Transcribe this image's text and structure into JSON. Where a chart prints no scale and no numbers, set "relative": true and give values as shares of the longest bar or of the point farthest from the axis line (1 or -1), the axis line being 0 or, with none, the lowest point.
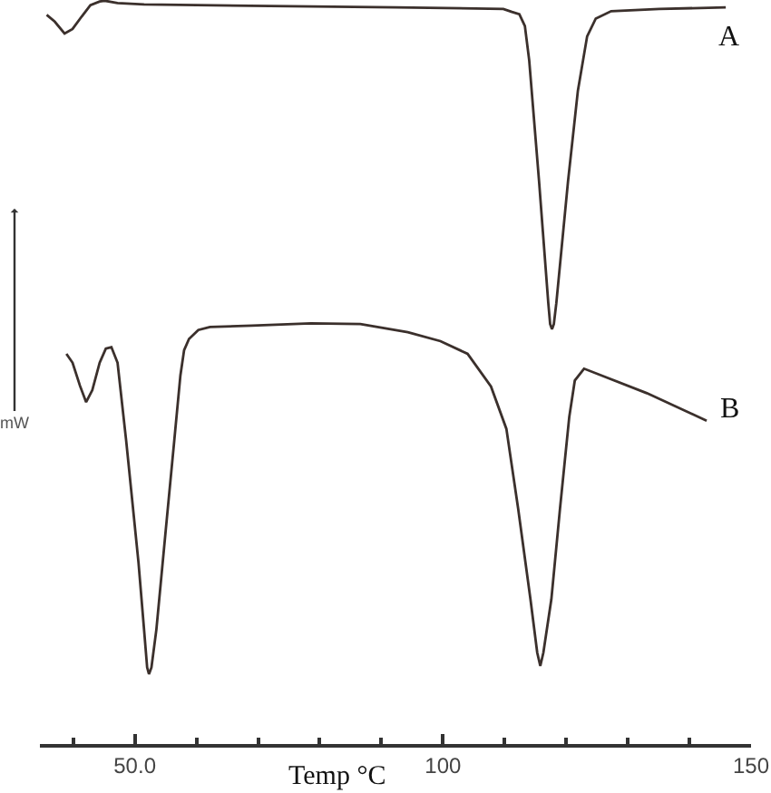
{
  "chart_data": {
    "type": "line",
    "relative": true,
    "xlabel": "Temp °C",
    "ylabel": "mW",
    "legend": false,
    "tick_labels": "x",
    "xlim": [
      34.6,
      150
    ],
    "xticks": [
      {
        "value": 40,
        "label": null
      },
      {
        "value": 50,
        "label": "50.0"
      },
      {
        "value": 60,
        "label": null
      },
      {
        "value": 70,
        "label": null
      },
      {
        "value": 80,
        "label": null
      },
      {
        "value": 90,
        "label": null
      },
      100,
      {
        "value": 110,
        "label": null
      },
      {
        "value": 120,
        "label": null
      },
      {
        "value": 130,
        "label": null
      },
      {
        "value": 140,
        "label": null
      },
      150
    ],
    "series": [
      {
        "name": "A",
        "color": "#3b302c",
        "x": [
          35.7,
          37.0,
          38.6,
          39.9,
          41.4,
          42.8,
          44.3,
          45.1,
          47.2,
          51.5,
          71.9,
          92.3,
          109.8,
          111.2,
          112.4,
          113.3,
          114.0,
          115.6,
          117.1,
          117.4,
          117.7,
          118.0,
          118.4,
          120.3,
          121.9,
          123.4,
          124.8,
          127.3,
          135.1,
          145.9
        ],
        "values": [
          0.981,
          0.972,
          0.956,
          0.962,
          0.979,
          0.994,
          0.999,
          1.0,
          0.997,
          0.995,
          0.993,
          0.991,
          0.989,
          0.985,
          0.982,
          0.966,
          0.92,
          0.757,
          0.593,
          0.565,
          0.558,
          0.565,
          0.593,
          0.757,
          0.879,
          0.952,
          0.976,
          0.986,
          0.989,
          0.991
        ]
      },
      {
        "name": "B",
        "color": "#3b302c",
        "x": [
          38.9,
          39.9,
          41.1,
          42.1,
          43.1,
          44.3,
          45.3,
          46.2,
          47.2,
          48.6,
          50.6,
          51.5,
          52.0,
          52.3,
          52.7,
          53.5,
          55.0,
          56.4,
          57.4,
          58.0,
          58.8,
          60.3,
          62.2,
          69.0,
          78.6,
          86.6,
          94.3,
          99.6,
          104.0,
          107.8,
          110.3,
          112.2,
          114.2,
          115.3,
          115.8,
          116.3,
          117.6,
          119.0,
          120.5,
          121.4,
          122.9,
          133.1,
          142.8
        ],
        "values": [
          0.525,
          0.513,
          0.482,
          0.46,
          0.476,
          0.513,
          0.532,
          0.534,
          0.513,
          0.408,
          0.244,
          0.154,
          0.103,
          0.094,
          0.103,
          0.154,
          0.286,
          0.408,
          0.496,
          0.53,
          0.545,
          0.557,
          0.561,
          0.563,
          0.566,
          0.565,
          0.554,
          0.542,
          0.525,
          0.481,
          0.424,
          0.317,
          0.195,
          0.123,
          0.105,
          0.123,
          0.195,
          0.317,
          0.44,
          0.489,
          0.505,
          0.472,
          0.435
        ]
      }
    ]
  }
}
